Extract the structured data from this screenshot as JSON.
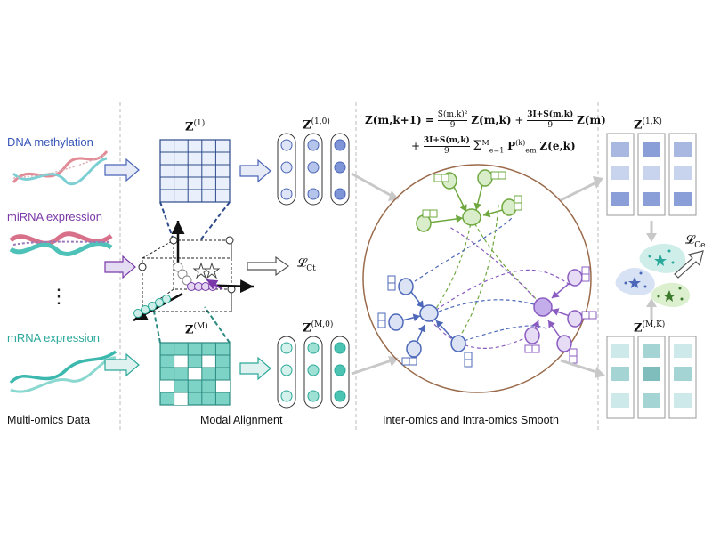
{
  "omics": {
    "dna": {
      "label": "DNA methylation",
      "color": "#3a58b8"
    },
    "mirna": {
      "label": "miRNA expression",
      "color": "#7a38a8"
    },
    "dots": "⋮",
    "mrna": {
      "label": "mRNA expression",
      "color": "#2aa899"
    }
  },
  "sections": {
    "data": "Multi-omics Data",
    "align": "Modal  Alignment",
    "smooth": "Inter-omics and Intra-omics Smooth"
  },
  "math": {
    "z1": "Z",
    "z1_sup": "(1)",
    "zM": "Z",
    "zM_sup": "(M)",
    "z10": "Z",
    "z10_sup": "(1,0)",
    "zM0": "Z",
    "zM0_sup": "(M,0)",
    "z1K": "Z",
    "z1K_sup": "(1,K)",
    "zMK": "Z",
    "zMK_sup": "(M,K)",
    "loss_ct": "𝓛",
    "loss_ct_sub": "Ct",
    "loss_ce": "𝓛",
    "loss_ce_sub": "Ce"
  },
  "equation": {
    "line1_lhs": "Z(m,k+1) =",
    "term1_num": "S(m,k)²",
    "term1_den": "9",
    "term1_z": "Z(m,k)",
    "plus1": "+",
    "term2_num": "3I+S(m,k)",
    "term2_den": "9",
    "term2_z": "Z(m)",
    "plus2": "+",
    "term3_num": "3I+S(m,k)",
    "term3_den": "9",
    "term3_sum": "Σ",
    "term3_sum_top": "M",
    "term3_sum_bot": "e=1",
    "term3_p": "P",
    "term3_p_sup": "(k)",
    "term3_p_sub": "em",
    "term3_z": "Z(e,k)"
  },
  "colors": {
    "dna": "#3a58b8",
    "mirna": "#7a38a8",
    "mrna": "#2aa899",
    "green_cluster": "#78b24a",
    "blue_cluster": "#5a76c0",
    "purple_cluster": "#9a6cc8",
    "brown_circle": "#9a6a4a",
    "divider": "#bbbbbb"
  }
}
